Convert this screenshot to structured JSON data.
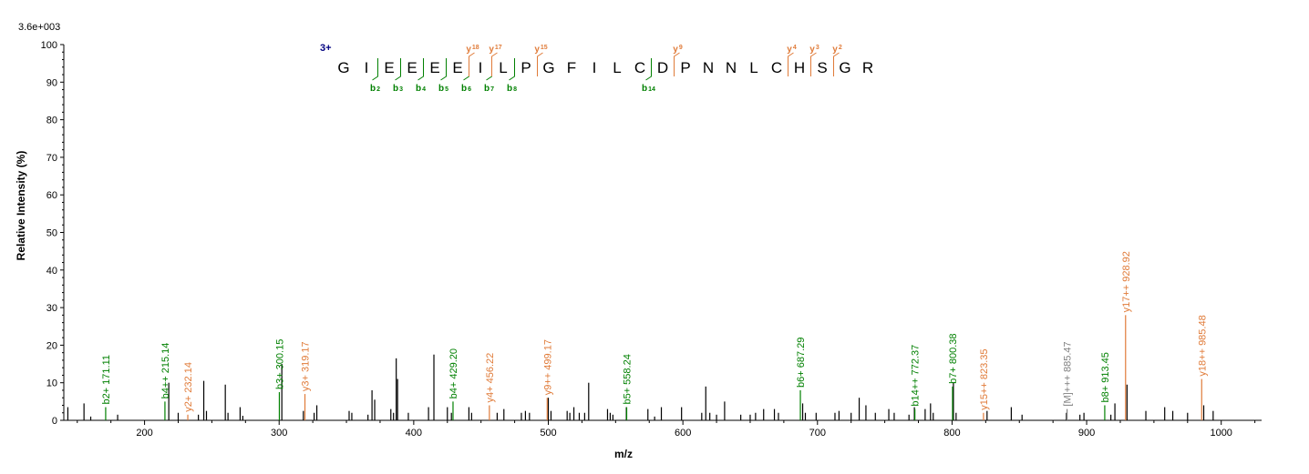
{
  "chart_data": {
    "type": "bar",
    "scale_label": "3.6e+003",
    "xlabel": "m/z",
    "ylabel": "Relative   Intensity (%)",
    "xlim": [
      140,
      1030
    ],
    "ylim": [
      0,
      100
    ],
    "x_ticks": [
      "200",
      "300",
      "400",
      "500",
      "600",
      "700",
      "800",
      "900",
      "1000"
    ],
    "y_ticks": [
      "0",
      "10",
      "20",
      "30",
      "40",
      "50",
      "60",
      "70",
      "80",
      "90",
      "100"
    ],
    "colors": {
      "b": "#008000",
      "y": "#e07b39",
      "other": "#808080",
      "unassigned": "#000000"
    },
    "labeled_peaks": [
      {
        "mz": 171.11,
        "intensity": 3.5,
        "type": "b",
        "label": "b2+ 171.11"
      },
      {
        "mz": 215.14,
        "intensity": 5.0,
        "type": "b",
        "label": "b4++ 215.14"
      },
      {
        "mz": 232.14,
        "intensity": 1.5,
        "type": "y",
        "label": "y2+ 232.14"
      },
      {
        "mz": 300.15,
        "intensity": 7.5,
        "type": "b",
        "label": "b3+ 300.15"
      },
      {
        "mz": 319.17,
        "intensity": 7.0,
        "type": "y",
        "label": "y3+ 319.17"
      },
      {
        "mz": 429.2,
        "intensity": 5.0,
        "type": "b",
        "label": "b4+ 429.20"
      },
      {
        "mz": 456.22,
        "intensity": 4.0,
        "type": "y",
        "label": "y4+ 456.22"
      },
      {
        "mz": 499.17,
        "intensity": 6.0,
        "type": "y",
        "label": "y9++ 499.17"
      },
      {
        "mz": 558.24,
        "intensity": 3.5,
        "type": "b",
        "label": "b5+ 558.24"
      },
      {
        "mz": 687.29,
        "intensity": 8.0,
        "type": "b",
        "label": "b6+ 687.29"
      },
      {
        "mz": 772.37,
        "intensity": 3.0,
        "type": "b",
        "label": "b14++ 772.37"
      },
      {
        "mz": 800.38,
        "intensity": 9.0,
        "type": "b",
        "label": "b7+ 800.38"
      },
      {
        "mz": 823.35,
        "intensity": 2.0,
        "type": "y",
        "label": "y15++ 823.35"
      },
      {
        "mz": 885.47,
        "intensity": 3.0,
        "type": "other",
        "label": "[M]+++ 885.47"
      },
      {
        "mz": 913.45,
        "intensity": 4.0,
        "type": "b",
        "label": "b8+ 913.45"
      },
      {
        "mz": 928.92,
        "intensity": 28.0,
        "type": "y",
        "label": "y17++ 928.92"
      },
      {
        "mz": 985.48,
        "intensity": 11.0,
        "type": "y",
        "label": "y18++ 985.48"
      }
    ],
    "unlabeled_peaks": [
      [
        143,
        3.5
      ],
      [
        155,
        4.5
      ],
      [
        160,
        1.0
      ],
      [
        180,
        1.5
      ],
      [
        218,
        10.0
      ],
      [
        225,
        2.0
      ],
      [
        240,
        1.5
      ],
      [
        244,
        10.5
      ],
      [
        246,
        2.5
      ],
      [
        260,
        9.5
      ],
      [
        262,
        2.0
      ],
      [
        271,
        3.5
      ],
      [
        273,
        1.2
      ],
      [
        302,
        15.0
      ],
      [
        318,
        2.5
      ],
      [
        326,
        2.0
      ],
      [
        328,
        4.0
      ],
      [
        352,
        2.5
      ],
      [
        354,
        2.0
      ],
      [
        366,
        1.5
      ],
      [
        369,
        8.0
      ],
      [
        371,
        5.5
      ],
      [
        383,
        3.0
      ],
      [
        385,
        2.0
      ],
      [
        387,
        16.5
      ],
      [
        388,
        11.0
      ],
      [
        396,
        2.0
      ],
      [
        411,
        3.5
      ],
      [
        415,
        17.5
      ],
      [
        425,
        3.5
      ],
      [
        428,
        2.0
      ],
      [
        441,
        3.5
      ],
      [
        443,
        2.0
      ],
      [
        462,
        2.0
      ],
      [
        467,
        3.0
      ],
      [
        480,
        2.0
      ],
      [
        483,
        2.5
      ],
      [
        486,
        2.0
      ],
      [
        500,
        6.0
      ],
      [
        502,
        2.5
      ],
      [
        514,
        2.5
      ],
      [
        516,
        2.0
      ],
      [
        519,
        3.5
      ],
      [
        523,
        2.0
      ],
      [
        527,
        2.0
      ],
      [
        530,
        10.0
      ],
      [
        544,
        3.0
      ],
      [
        546,
        2.0
      ],
      [
        548,
        1.5
      ],
      [
        558,
        3.5
      ],
      [
        574,
        3.0
      ],
      [
        579,
        1.0
      ],
      [
        584,
        3.5
      ],
      [
        599,
        3.5
      ],
      [
        614,
        2.0
      ],
      [
        617,
        9.0
      ],
      [
        620,
        2.0
      ],
      [
        625,
        1.5
      ],
      [
        631,
        5.0
      ],
      [
        643,
        1.5
      ],
      [
        650,
        1.5
      ],
      [
        654,
        2.0
      ],
      [
        660,
        3.0
      ],
      [
        668,
        3.0
      ],
      [
        671,
        2.0
      ],
      [
        689,
        4.5
      ],
      [
        691,
        2.0
      ],
      [
        699,
        2.0
      ],
      [
        713,
        2.0
      ],
      [
        716,
        2.5
      ],
      [
        725,
        2.0
      ],
      [
        731,
        6.0
      ],
      [
        736,
        4.0
      ],
      [
        743,
        2.0
      ],
      [
        753,
        3.0
      ],
      [
        757,
        2.0
      ],
      [
        768,
        1.5
      ],
      [
        772,
        3.5
      ],
      [
        780,
        3.0
      ],
      [
        784,
        4.5
      ],
      [
        786,
        2.0
      ],
      [
        801,
        10.0
      ],
      [
        803,
        2.0
      ],
      [
        826,
        2.5
      ],
      [
        844,
        3.5
      ],
      [
        852,
        1.5
      ],
      [
        885,
        2.0
      ],
      [
        895,
        1.5
      ],
      [
        898,
        2.0
      ],
      [
        918,
        1.5
      ],
      [
        921,
        4.5
      ],
      [
        930,
        9.5
      ],
      [
        944,
        2.5
      ],
      [
        958,
        3.5
      ],
      [
        964,
        2.5
      ],
      [
        975,
        2.0
      ],
      [
        987,
        4.0
      ],
      [
        994,
        2.5
      ]
    ],
    "sequence": {
      "charge": "3+",
      "residues": [
        "G",
        "I",
        "E",
        "E",
        "E",
        "E",
        "I",
        "L",
        "P",
        "G",
        "F",
        "I",
        "L",
        "C",
        "D",
        "P",
        "N",
        "N",
        "L",
        "C",
        "H",
        "S",
        "G",
        "R"
      ],
      "b_ions": [
        {
          "after": 2,
          "label": "b",
          "num": "2"
        },
        {
          "after": 3,
          "label": "b",
          "num": "3"
        },
        {
          "after": 4,
          "label": "b",
          "num": "4"
        },
        {
          "after": 5,
          "label": "b",
          "num": "5"
        },
        {
          "after": 6,
          "label": "b",
          "num": "6"
        },
        {
          "after": 7,
          "label": "b",
          "num": "7"
        },
        {
          "after": 8,
          "label": "b",
          "num": "8"
        },
        {
          "after": 14,
          "label": "b",
          "num": "14"
        }
      ],
      "y_ions": [
        {
          "after": 6,
          "label": "y",
          "num": "18"
        },
        {
          "after": 7,
          "label": "y",
          "num": "17"
        },
        {
          "after": 9,
          "label": "y",
          "num": "15"
        },
        {
          "after": 15,
          "label": "y",
          "num": "9"
        },
        {
          "after": 20,
          "label": "y",
          "num": "4"
        },
        {
          "after": 21,
          "label": "y",
          "num": "3"
        },
        {
          "after": 22,
          "label": "y",
          "num": "2"
        }
      ]
    }
  }
}
